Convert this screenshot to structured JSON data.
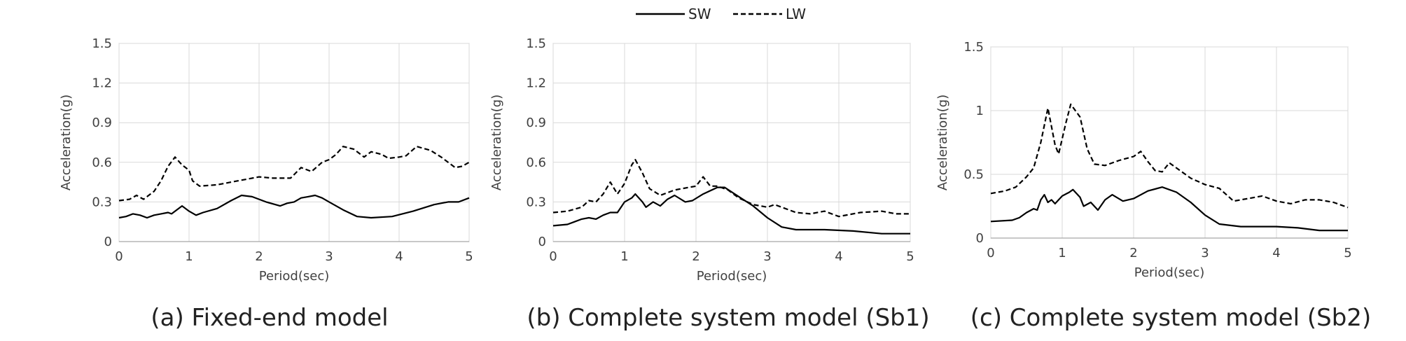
{
  "legend": {
    "entries": [
      {
        "label": "SW",
        "style": "solid"
      },
      {
        "label": "LW",
        "style": "dashed"
      }
    ]
  },
  "colors": {
    "line": "#000000",
    "grid": "#d9d9d9",
    "axis": "#bfbfbf"
  },
  "chart_data": [
    {
      "type": "line",
      "caption": "(a) Fixed-end model",
      "xlabel": "Period(sec)",
      "ylabel": "Acceleration(g)",
      "xlim": [
        0,
        5
      ],
      "ylim": [
        0,
        1.5
      ],
      "xticks": [
        "0",
        "1",
        "2",
        "3",
        "4",
        "5"
      ],
      "yticks": [
        "0",
        "0.3",
        "0.6",
        "0.9",
        "1.2",
        "1.5"
      ],
      "grid": true,
      "series": [
        {
          "name": "SW",
          "style": "solid",
          "points": [
            [
              0,
              0.18
            ],
            [
              0.1,
              0.19
            ],
            [
              0.2,
              0.21
            ],
            [
              0.3,
              0.2
            ],
            [
              0.4,
              0.18
            ],
            [
              0.5,
              0.2
            ],
            [
              0.6,
              0.21
            ],
            [
              0.7,
              0.22
            ],
            [
              0.75,
              0.21
            ],
            [
              0.8,
              0.23
            ],
            [
              0.9,
              0.27
            ],
            [
              1.0,
              0.23
            ],
            [
              1.1,
              0.2
            ],
            [
              1.2,
              0.22
            ],
            [
              1.4,
              0.25
            ],
            [
              1.6,
              0.31
            ],
            [
              1.75,
              0.35
            ],
            [
              1.9,
              0.34
            ],
            [
              2.1,
              0.3
            ],
            [
              2.3,
              0.27
            ],
            [
              2.4,
              0.29
            ],
            [
              2.5,
              0.3
            ],
            [
              2.6,
              0.33
            ],
            [
              2.7,
              0.34
            ],
            [
              2.8,
              0.35
            ],
            [
              2.9,
              0.33
            ],
            [
              3.0,
              0.3
            ],
            [
              3.2,
              0.24
            ],
            [
              3.4,
              0.19
            ],
            [
              3.6,
              0.18
            ],
            [
              3.9,
              0.19
            ],
            [
              4.2,
              0.23
            ],
            [
              4.5,
              0.28
            ],
            [
              4.7,
              0.3
            ],
            [
              4.85,
              0.3
            ],
            [
              5.0,
              0.33
            ]
          ]
        },
        {
          "name": "LW",
          "style": "dashed",
          "points": [
            [
              0,
              0.31
            ],
            [
              0.15,
              0.32
            ],
            [
              0.25,
              0.35
            ],
            [
              0.35,
              0.32
            ],
            [
              0.5,
              0.38
            ],
            [
              0.6,
              0.46
            ],
            [
              0.7,
              0.57
            ],
            [
              0.8,
              0.64
            ],
            [
              0.9,
              0.58
            ],
            [
              1.0,
              0.54
            ],
            [
              1.05,
              0.46
            ],
            [
              1.15,
              0.42
            ],
            [
              1.4,
              0.43
            ],
            [
              1.7,
              0.46
            ],
            [
              2.0,
              0.49
            ],
            [
              2.2,
              0.48
            ],
            [
              2.45,
              0.48
            ],
            [
              2.6,
              0.56
            ],
            [
              2.75,
              0.53
            ],
            [
              2.9,
              0.6
            ],
            [
              3.0,
              0.62
            ],
            [
              3.1,
              0.66
            ],
            [
              3.2,
              0.72
            ],
            [
              3.35,
              0.7
            ],
            [
              3.5,
              0.64
            ],
            [
              3.6,
              0.68
            ],
            [
              3.75,
              0.66
            ],
            [
              3.85,
              0.63
            ],
            [
              4.0,
              0.64
            ],
            [
              4.1,
              0.65
            ],
            [
              4.25,
              0.72
            ],
            [
              4.45,
              0.69
            ],
            [
              4.6,
              0.64
            ],
            [
              4.8,
              0.56
            ],
            [
              4.9,
              0.57
            ],
            [
              5.0,
              0.6
            ]
          ]
        }
      ]
    },
    {
      "type": "line",
      "caption": "(b) Complete system model (Sb1)",
      "xlabel": "Period(sec)",
      "ylabel": "Acceleration(g)",
      "xlim": [
        0,
        5
      ],
      "ylim": [
        0,
        1.5
      ],
      "xticks": [
        "0",
        "1",
        "2",
        "3",
        "4",
        "5"
      ],
      "yticks": [
        "0",
        "0.3",
        "0.6",
        "0.9",
        "1.2",
        "1.5"
      ],
      "grid": true,
      "series": [
        {
          "name": "SW",
          "style": "solid",
          "points": [
            [
              0,
              0.12
            ],
            [
              0.2,
              0.13
            ],
            [
              0.3,
              0.15
            ],
            [
              0.4,
              0.17
            ],
            [
              0.5,
              0.18
            ],
            [
              0.6,
              0.17
            ],
            [
              0.7,
              0.2
            ],
            [
              0.8,
              0.22
            ],
            [
              0.9,
              0.22
            ],
            [
              1.0,
              0.3
            ],
            [
              1.1,
              0.33
            ],
            [
              1.15,
              0.36
            ],
            [
              1.25,
              0.3
            ],
            [
              1.3,
              0.26
            ],
            [
              1.4,
              0.3
            ],
            [
              1.5,
              0.27
            ],
            [
              1.6,
              0.32
            ],
            [
              1.7,
              0.35
            ],
            [
              1.85,
              0.3
            ],
            [
              1.95,
              0.31
            ],
            [
              2.1,
              0.36
            ],
            [
              2.3,
              0.41
            ],
            [
              2.4,
              0.41
            ],
            [
              2.6,
              0.34
            ],
            [
              2.8,
              0.27
            ],
            [
              3.0,
              0.18
            ],
            [
              3.2,
              0.11
            ],
            [
              3.4,
              0.09
            ],
            [
              3.8,
              0.09
            ],
            [
              4.2,
              0.08
            ],
            [
              4.6,
              0.06
            ],
            [
              5.0,
              0.06
            ]
          ]
        },
        {
          "name": "LW",
          "style": "dashed",
          "points": [
            [
              0,
              0.22
            ],
            [
              0.2,
              0.23
            ],
            [
              0.4,
              0.26
            ],
            [
              0.5,
              0.31
            ],
            [
              0.6,
              0.3
            ],
            [
              0.7,
              0.36
            ],
            [
              0.8,
              0.45
            ],
            [
              0.9,
              0.36
            ],
            [
              1.0,
              0.44
            ],
            [
              1.1,
              0.58
            ],
            [
              1.15,
              0.62
            ],
            [
              1.25,
              0.52
            ],
            [
              1.35,
              0.4
            ],
            [
              1.5,
              0.35
            ],
            [
              1.7,
              0.39
            ],
            [
              1.9,
              0.41
            ],
            [
              2.0,
              0.42
            ],
            [
              2.1,
              0.49
            ],
            [
              2.2,
              0.42
            ],
            [
              2.3,
              0.42
            ],
            [
              2.45,
              0.39
            ],
            [
              2.6,
              0.33
            ],
            [
              2.8,
              0.28
            ],
            [
              3.0,
              0.26
            ],
            [
              3.1,
              0.28
            ],
            [
              3.2,
              0.26
            ],
            [
              3.4,
              0.22
            ],
            [
              3.6,
              0.21
            ],
            [
              3.8,
              0.23
            ],
            [
              4.0,
              0.19
            ],
            [
              4.3,
              0.22
            ],
            [
              4.6,
              0.23
            ],
            [
              4.8,
              0.21
            ],
            [
              5.0,
              0.21
            ]
          ]
        }
      ]
    },
    {
      "type": "line",
      "caption": "(c) Complete system model (Sb2)",
      "xlabel": "Period(sec)",
      "ylabel": "Acceleration(g)",
      "xlim": [
        0,
        5
      ],
      "ylim": [
        0,
        1.5
      ],
      "xticks": [
        "0",
        "1",
        "2",
        "3",
        "4",
        "5"
      ],
      "yticks": [
        "0",
        "0.5",
        "1",
        "1.5"
      ],
      "grid": true,
      "series": [
        {
          "name": "SW",
          "style": "solid",
          "points": [
            [
              0,
              0.13
            ],
            [
              0.3,
              0.14
            ],
            [
              0.4,
              0.16
            ],
            [
              0.5,
              0.2
            ],
            [
              0.6,
              0.23
            ],
            [
              0.65,
              0.22
            ],
            [
              0.7,
              0.3
            ],
            [
              0.75,
              0.34
            ],
            [
              0.8,
              0.28
            ],
            [
              0.85,
              0.3
            ],
            [
              0.9,
              0.27
            ],
            [
              1.0,
              0.33
            ],
            [
              1.1,
              0.36
            ],
            [
              1.15,
              0.38
            ],
            [
              1.25,
              0.32
            ],
            [
              1.3,
              0.25
            ],
            [
              1.4,
              0.28
            ],
            [
              1.5,
              0.22
            ],
            [
              1.6,
              0.3
            ],
            [
              1.7,
              0.34
            ],
            [
              1.85,
              0.29
            ],
            [
              2.0,
              0.31
            ],
            [
              2.2,
              0.37
            ],
            [
              2.4,
              0.4
            ],
            [
              2.6,
              0.36
            ],
            [
              2.8,
              0.28
            ],
            [
              3.0,
              0.18
            ],
            [
              3.2,
              0.11
            ],
            [
              3.5,
              0.09
            ],
            [
              4.0,
              0.09
            ],
            [
              4.3,
              0.08
            ],
            [
              4.6,
              0.06
            ],
            [
              5.0,
              0.06
            ]
          ]
        },
        {
          "name": "LW",
          "style": "dashed",
          "points": [
            [
              0,
              0.35
            ],
            [
              0.2,
              0.37
            ],
            [
              0.35,
              0.4
            ],
            [
              0.5,
              0.48
            ],
            [
              0.6,
              0.55
            ],
            [
              0.7,
              0.75
            ],
            [
              0.8,
              1.02
            ],
            [
              0.9,
              0.73
            ],
            [
              0.95,
              0.66
            ],
            [
              1.05,
              0.9
            ],
            [
              1.12,
              1.05
            ],
            [
              1.25,
              0.95
            ],
            [
              1.35,
              0.7
            ],
            [
              1.45,
              0.58
            ],
            [
              1.6,
              0.57
            ],
            [
              1.8,
              0.61
            ],
            [
              2.0,
              0.64
            ],
            [
              2.1,
              0.68
            ],
            [
              2.2,
              0.6
            ],
            [
              2.3,
              0.53
            ],
            [
              2.4,
              0.52
            ],
            [
              2.5,
              0.59
            ],
            [
              2.6,
              0.55
            ],
            [
              2.8,
              0.47
            ],
            [
              3.0,
              0.42
            ],
            [
              3.2,
              0.39
            ],
            [
              3.4,
              0.29
            ],
            [
              3.6,
              0.31
            ],
            [
              3.8,
              0.33
            ],
            [
              4.0,
              0.29
            ],
            [
              4.2,
              0.27
            ],
            [
              4.4,
              0.3
            ],
            [
              4.6,
              0.3
            ],
            [
              4.8,
              0.28
            ],
            [
              5.0,
              0.24
            ]
          ]
        }
      ]
    }
  ]
}
